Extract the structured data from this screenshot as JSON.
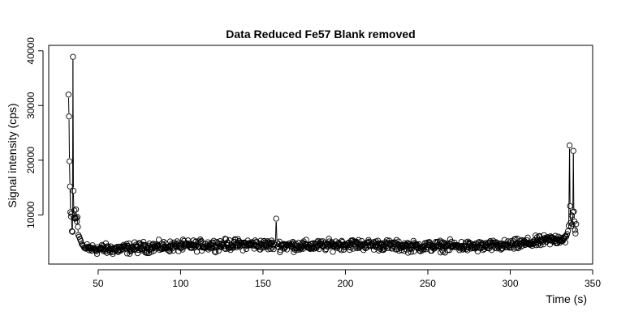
{
  "chart_data": {
    "type": "scatter",
    "title": "Data Reduced Fe57 Blank removed",
    "xlabel": "Time (s)",
    "ylabel": "Signal intensity (cps)",
    "xlim": [
      20,
      350
    ],
    "ylim": [
      1000,
      41000
    ],
    "xticks": [
      50,
      100,
      150,
      200,
      250,
      300,
      350
    ],
    "yticks": [
      10000,
      20000,
      30000,
      40000
    ],
    "grid": false,
    "marker": "open-circle",
    "line_style": "vertical-segments-between-consecutive-points",
    "series": [
      {
        "values_description_omitted": false,
        "x": [
          32.0,
          32.3,
          32.6,
          32.9,
          33.2,
          33.5,
          33.8,
          34.1,
          34.4,
          34.7,
          35.0,
          35.3,
          35.6,
          35.9,
          36.2,
          36.5,
          36.8,
          37.1,
          37.4,
          37.7,
          38.0,
          38.5,
          39.0,
          39.5,
          40.0,
          40.5,
          41.0,
          41.5,
          42.0,
          42.5,
          157.5,
          158.0,
          158.5,
          334.0,
          334.5,
          335.0,
          335.5,
          336.0,
          336.3,
          336.6,
          337.0,
          337.3,
          337.6,
          338.0,
          338.3,
          338.6,
          339.0,
          339.3,
          339.6,
          340.0
        ],
        "y": [
          32000,
          28000,
          19800,
          15200,
          10500,
          9700,
          10200,
          7000,
          6900,
          38900,
          14400,
          9400,
          10800,
          9500,
          9300,
          11000,
          9400,
          8800,
          9600,
          7800,
          6300,
          6000,
          5600,
          5200,
          4700,
          4500,
          4300,
          4000,
          3900,
          3800,
          4500,
          9300,
          5000,
          6000,
          6500,
          7000,
          8000,
          22700,
          11600,
          8500,
          7900,
          9900,
          8300,
          10500,
          21700,
          10600,
          8800,
          7200,
          6600,
          8300
        ]
      }
    ],
    "background_trend": {
      "x_start": 43,
      "x_end": 334,
      "step": 0.3,
      "baseline_points": [
        [
          43,
          3800
        ],
        [
          60,
          3700
        ],
        [
          80,
          4100
        ],
        [
          100,
          4300
        ],
        [
          120,
          4500
        ],
        [
          140,
          4600
        ],
        [
          160,
          4400
        ],
        [
          180,
          4300
        ],
        [
          200,
          4600
        ],
        [
          220,
          4500
        ],
        [
          240,
          4200
        ],
        [
          260,
          4300
        ],
        [
          280,
          4200
        ],
        [
          300,
          4400
        ],
        [
          320,
          5200
        ],
        [
          334,
          5800
        ]
      ],
      "noise_amplitude": 900
    }
  }
}
